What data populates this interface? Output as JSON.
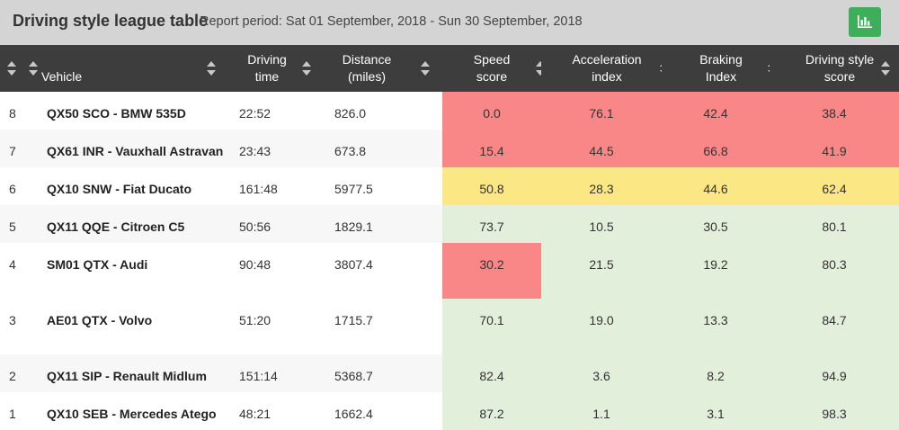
{
  "header": {
    "title": "Driving style league table",
    "period": "Report period: Sat 01 September, 2018 - Sun 30 September, 2018",
    "chart_button_icon": "bar-chart-icon",
    "chart_button_color": "#3fae5a"
  },
  "columns": {
    "vehicle": "Vehicle",
    "driving_time": [
      "Driving",
      "time"
    ],
    "distance": [
      "Distance",
      "(miles)"
    ],
    "speed": [
      "Speed",
      "score"
    ],
    "acceleration": [
      "Acceleration",
      "index"
    ],
    "braking": [
      "Braking",
      "Index"
    ],
    "style": [
      "Driving style",
      "score"
    ]
  },
  "colors": {
    "red": "#f98787",
    "yellow": "#fbe885",
    "green": "#e2efda",
    "header_bg": "#3d3d3d",
    "topbar_bg": "#d4d4d4"
  },
  "rows": [
    {
      "rank": "8",
      "vehicle": "QX50 SCO - BMW 535D",
      "time": "22:52",
      "distance": "826.0",
      "speed": "0.0",
      "accel": "76.1",
      "braking": "42.4",
      "style": "38.4"
    },
    {
      "rank": "7",
      "vehicle": "QX61 INR - Vauxhall Astravan",
      "time": "23:43",
      "distance": "673.8",
      "speed": "15.4",
      "accel": "44.5",
      "braking": "66.8",
      "style": "41.9"
    },
    {
      "rank": "6",
      "vehicle": "QX10 SNW - Fiat Ducato",
      "time": "161:48",
      "distance": "5977.5",
      "speed": "50.8",
      "accel": "28.3",
      "braking": "44.6",
      "style": "62.4"
    },
    {
      "rank": "5",
      "vehicle": "QX11 QQE - Citroen C5",
      "time": "50:56",
      "distance": "1829.1",
      "speed": "73.7",
      "accel": "10.5",
      "braking": "30.5",
      "style": "80.1"
    },
    {
      "rank": "4",
      "vehicle": "SM01 QTX - Audi",
      "time": "90:48",
      "distance": "3807.4",
      "speed": "30.2",
      "accel": "21.5",
      "braking": "19.2",
      "style": "80.3"
    },
    {
      "rank": "3",
      "vehicle": "AE01 QTX - Volvo",
      "time": "51:20",
      "distance": "1715.7",
      "speed": "70.1",
      "accel": "19.0",
      "braking": "13.3",
      "style": "84.7"
    },
    {
      "rank": "2",
      "vehicle": "QX11 SIP - Renault Midlum",
      "time": "151:14",
      "distance": "5368.7",
      "speed": "82.4",
      "accel": "3.6",
      "braking": "8.2",
      "style": "94.9"
    },
    {
      "rank": "1",
      "vehicle": "QX10 SEB - Mercedes Atego",
      "time": "48:21",
      "distance": "1662.4",
      "speed": "87.2",
      "accel": "1.1",
      "braking": "3.1",
      "style": "98.3"
    }
  ]
}
